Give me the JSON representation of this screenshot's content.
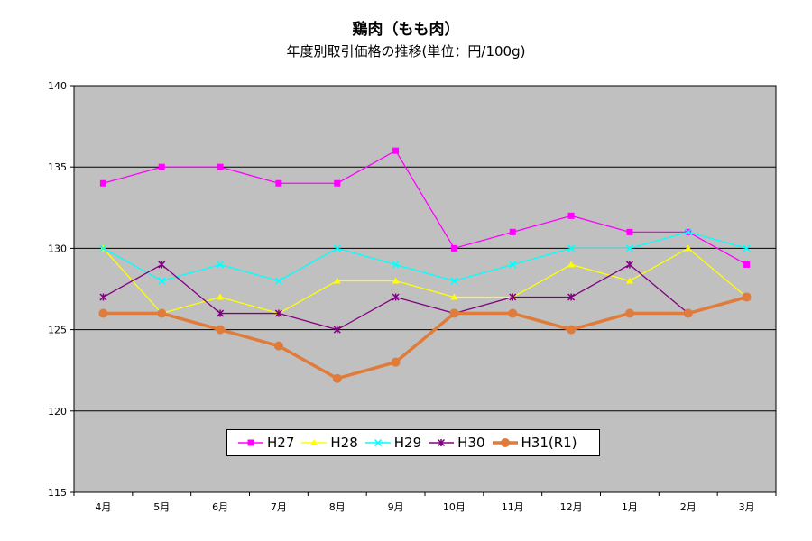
{
  "chart_data": {
    "type": "line",
    "title": "鶏肉（もも肉）",
    "subtitle": "年度別取引価格の推移(単位：円/100g)",
    "categories": [
      "4月",
      "5月",
      "6月",
      "7月",
      "8月",
      "9月",
      "10月",
      "11月",
      "12月",
      "1月",
      "2月",
      "3月"
    ],
    "ylim": [
      115,
      140
    ],
    "yticks": [
      115,
      120,
      125,
      130,
      135,
      140
    ],
    "grid": true,
    "legend_position": "bottom-center",
    "plot_background": "#c0c0c0",
    "series": [
      {
        "name": "H27",
        "color": "#ff00ff",
        "marker": "square",
        "values": [
          134,
          135,
          135,
          134,
          134,
          136,
          130,
          131,
          132,
          131,
          131,
          129
        ]
      },
      {
        "name": "H28",
        "color": "#ffff00",
        "marker": "triangle",
        "values": [
          130,
          126,
          127,
          126,
          128,
          128,
          127,
          127,
          129,
          128,
          130,
          127
        ]
      },
      {
        "name": "H29",
        "color": "#00ffff",
        "marker": "x",
        "values": [
          130,
          128,
          129,
          128,
          130,
          129,
          128,
          129,
          130,
          130,
          131,
          130
        ]
      },
      {
        "name": "H30",
        "color": "#800080",
        "marker": "star",
        "values": [
          127,
          129,
          126,
          126,
          125,
          127,
          126,
          127,
          127,
          129,
          126,
          127
        ]
      },
      {
        "name": "H31(R1)",
        "color": "#e07b39",
        "marker": "circle",
        "values": [
          126,
          126,
          125,
          124,
          122,
          123,
          126,
          126,
          125,
          126,
          126,
          127
        ]
      }
    ]
  }
}
